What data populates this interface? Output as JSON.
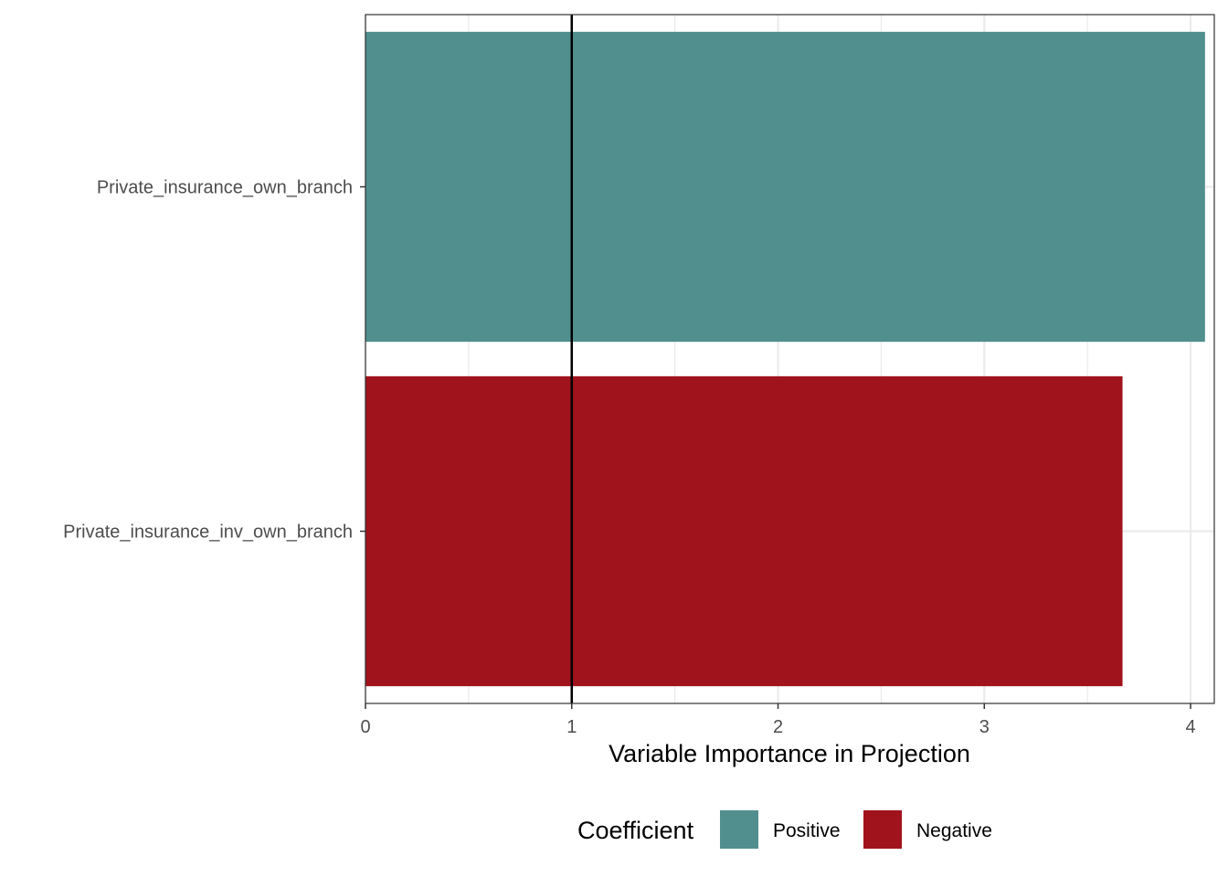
{
  "chart_data": {
    "type": "bar",
    "orientation": "horizontal",
    "categories": [
      "Private_insurance_own_branch",
      "Private_insurance_inv_own_branch"
    ],
    "values": [
      4.07,
      3.67
    ],
    "bar_groups": [
      "Positive",
      "Negative"
    ],
    "xlabel": "Variable Importance in Projection",
    "ylabel": "",
    "xlim": [
      0,
      4.07
    ],
    "xticks": [
      "0",
      "1",
      "2",
      "3",
      "4"
    ],
    "reference_line": 1,
    "grid": true,
    "legend": {
      "title": "Coefficient",
      "position": "bottom",
      "entries": [
        {
          "label": "Positive",
          "color": "#518f8f"
        },
        {
          "label": "Negative",
          "color": "#a0131c"
        }
      ]
    },
    "colors": {
      "Positive": "#518f8f",
      "Negative": "#a0131c",
      "grid": "#ebebeb",
      "reference_line": "#000000"
    }
  }
}
